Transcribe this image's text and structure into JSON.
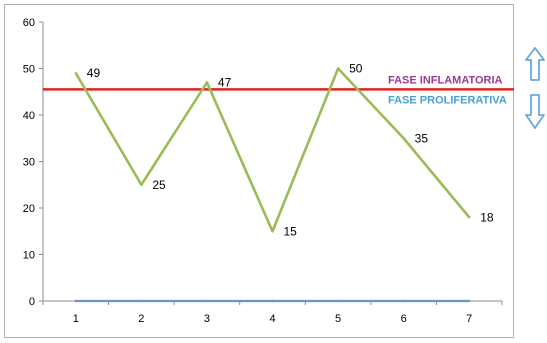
{
  "chart_data": {
    "type": "line",
    "x": [
      1,
      2,
      3,
      4,
      5,
      6,
      7
    ],
    "series": [
      {
        "values": [
          49,
          25,
          47,
          15,
          50,
          35,
          18
        ],
        "color": "#9bbb59",
        "data_labels": true
      },
      {
        "values": [
          0,
          0,
          0,
          0,
          0,
          0,
          0
        ],
        "color": "#6f8fcf",
        "data_labels": false
      }
    ],
    "xlim": [
      0.5,
      7.5
    ],
    "ylim": [
      0,
      60
    ],
    "yticks": [
      0,
      10,
      20,
      30,
      40,
      50,
      60
    ],
    "xticks": [
      1,
      2,
      3,
      4,
      5,
      6,
      7
    ],
    "grid": false,
    "reference_line": {
      "y": 45.5,
      "color": "#e3241b"
    },
    "annotations": [
      {
        "text": "FASE INFLAMATORIA",
        "color": "#9a3a92",
        "arrow": "up"
      },
      {
        "text": "FASE PROLIFERATIVA",
        "color": "#4a9fd4",
        "arrow": "down"
      }
    ],
    "arrow_color": "#6aa7d8"
  }
}
